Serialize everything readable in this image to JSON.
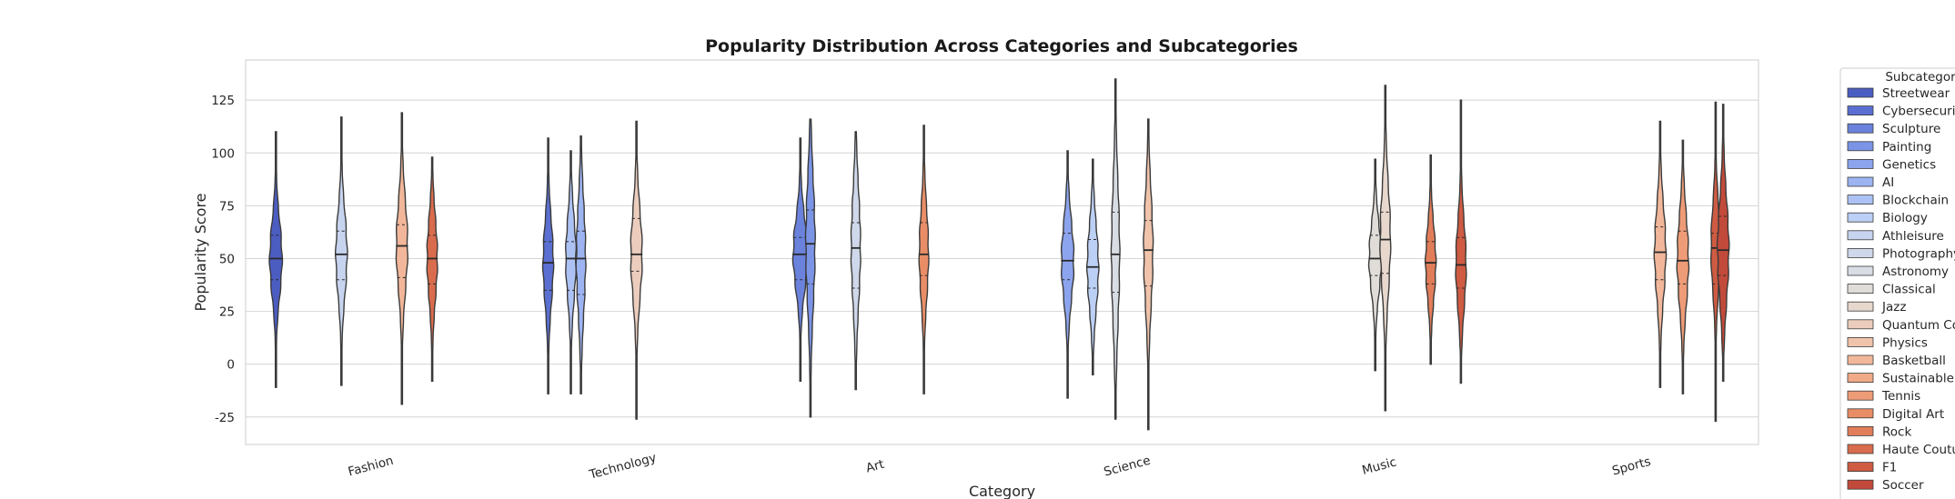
{
  "chart_data": {
    "type": "violin",
    "title": "Popularity Distribution Across Categories and Subcategories",
    "xlabel": "Category",
    "ylabel": "Popularity Score",
    "ylim": [
      -38,
      144
    ],
    "yticks": [
      -25,
      0,
      25,
      50,
      75,
      100,
      125
    ],
    "categories": [
      "Fashion",
      "Technology",
      "Art",
      "Science",
      "Music",
      "Sports"
    ],
    "grid": "y",
    "legend": {
      "title": "Subcategory",
      "placement": "outside-right",
      "items": [
        {
          "name": "Streetwear",
          "color": "#4c5dc1"
        },
        {
          "name": "Cybersecurity",
          "color": "#5a6fd1"
        },
        {
          "name": "Sculpture",
          "color": "#6a82dc"
        },
        {
          "name": "Painting",
          "color": "#7b94e6"
        },
        {
          "name": "Genetics",
          "color": "#8ca4ed"
        },
        {
          "name": "AI",
          "color": "#9db4f2"
        },
        {
          "name": "Blockchain",
          "color": "#adc2f4"
        },
        {
          "name": "Biology",
          "color": "#bccff5"
        },
        {
          "name": "Athleisure",
          "color": "#c7d4ef"
        },
        {
          "name": "Photography",
          "color": "#cfd8ea"
        },
        {
          "name": "Astronomy",
          "color": "#d8dce3"
        },
        {
          "name": "Classical",
          "color": "#e0dcd8"
        },
        {
          "name": "Jazz",
          "color": "#e7d7cd"
        },
        {
          "name": "Quantum Co",
          "color": "#eccdbd"
        },
        {
          "name": "Physics",
          "color": "#f0c3ab"
        },
        {
          "name": "Basketball",
          "color": "#f2b79a"
        },
        {
          "name": "Sustainable",
          "color": "#f1aa88"
        },
        {
          "name": "Tennis",
          "color": "#ee9c77"
        },
        {
          "name": "Digital Art",
          "color": "#e98d67"
        },
        {
          "name": "Rock",
          "color": "#e27d5a"
        },
        {
          "name": "Haute Coutu",
          "color": "#d96c4d"
        },
        {
          "name": "F1",
          "color": "#ce5b42"
        },
        {
          "name": "Soccer",
          "color": "#c24a3a"
        }
      ]
    },
    "violins": [
      {
        "category": "Fashion",
        "subcategory": "Streetwear",
        "offset": -0.38,
        "min": -11,
        "max": 110,
        "q1": 40,
        "median": 50,
        "q3": 61,
        "width": 0.6
      },
      {
        "category": "Fashion",
        "subcategory": "Athleisure",
        "offset": -0.12,
        "min": -10,
        "max": 117,
        "q1": 40,
        "median": 52,
        "q3": 63,
        "width": 0.55
      },
      {
        "category": "Fashion",
        "subcategory": "Basketball",
        "offset": 0.12,
        "min": -19,
        "max": 119,
        "q1": 41,
        "median": 56,
        "q3": 66,
        "width": 0.55
      },
      {
        "category": "Fashion",
        "subcategory": "Haute Coutu",
        "offset": 0.24,
        "min": -8,
        "max": 98,
        "q1": 38,
        "median": 50,
        "q3": 61,
        "width": 0.5
      },
      {
        "category": "Technology",
        "subcategory": "Cybersecurity",
        "offset": -0.3,
        "min": -14,
        "max": 107,
        "q1": 35,
        "median": 48,
        "q3": 58,
        "width": 0.5
      },
      {
        "category": "Technology",
        "subcategory": "Blockchain",
        "offset": -0.21,
        "min": -14,
        "max": 101,
        "q1": 35,
        "median": 50,
        "q3": 58,
        "width": 0.5
      },
      {
        "category": "Technology",
        "subcategory": "AI",
        "offset": -0.17,
        "min": -14,
        "max": 108,
        "q1": 33,
        "median": 50,
        "q3": 63,
        "width": 0.45
      },
      {
        "category": "Technology",
        "subcategory": "Quantum Co",
        "offset": 0.05,
        "min": -26,
        "max": 115,
        "q1": 44,
        "median": 52,
        "q3": 69,
        "width": 0.55
      },
      {
        "category": "Art",
        "subcategory": "Sculpture",
        "offset": -0.3,
        "min": -8,
        "max": 107,
        "q1": 40,
        "median": 52,
        "q3": 60,
        "width": 0.7
      },
      {
        "category": "Art",
        "subcategory": "Painting",
        "offset": -0.26,
        "min": -25,
        "max": 116,
        "q1": 38,
        "median": 57,
        "q3": 73,
        "width": 0.45
      },
      {
        "category": "Art",
        "subcategory": "Photography",
        "offset": -0.08,
        "min": -12,
        "max": 110,
        "q1": 36,
        "median": 55,
        "q3": 67,
        "width": 0.45
      },
      {
        "category": "Art",
        "subcategory": "Digital Art",
        "offset": 0.19,
        "min": -14,
        "max": 113,
        "q1": 42,
        "median": 52,
        "q3": 67,
        "width": 0.45
      },
      {
        "category": "Science",
        "subcategory": "Genetics",
        "offset": -0.24,
        "min": -16,
        "max": 101,
        "q1": 40,
        "median": 49,
        "q3": 62,
        "width": 0.6
      },
      {
        "category": "Science",
        "subcategory": "Biology",
        "offset": -0.14,
        "min": -5,
        "max": 97,
        "q1": 36,
        "median": 46,
        "q3": 59,
        "width": 0.55
      },
      {
        "category": "Science",
        "subcategory": "Astronomy",
        "offset": -0.05,
        "min": -26,
        "max": 135,
        "q1": 34,
        "median": 52,
        "q3": 72,
        "width": 0.4
      },
      {
        "category": "Science",
        "subcategory": "Physics",
        "offset": 0.08,
        "min": -31,
        "max": 116,
        "q1": 37,
        "median": 54,
        "q3": 68,
        "width": 0.45
      },
      {
        "category": "Music",
        "subcategory": "Classical",
        "offset": -0.02,
        "min": -3,
        "max": 97,
        "q1": 42,
        "median": 50,
        "q3": 61,
        "width": 0.6
      },
      {
        "category": "Music",
        "subcategory": "Jazz",
        "offset": 0.02,
        "min": -22,
        "max": 132,
        "q1": 43,
        "median": 59,
        "q3": 72,
        "width": 0.5
      },
      {
        "category": "Music",
        "subcategory": "Rock",
        "offset": 0.2,
        "min": 0,
        "max": 99,
        "q1": 38,
        "median": 48,
        "q3": 58,
        "width": 0.5
      },
      {
        "category": "Music",
        "subcategory": "F1",
        "offset": 0.32,
        "min": -9,
        "max": 125,
        "q1": 36,
        "median": 47,
        "q3": 60,
        "width": 0.5
      },
      {
        "category": "Sports",
        "subcategory": "Basketball",
        "offset": 0.11,
        "min": -11,
        "max": 115,
        "q1": 40,
        "median": 53,
        "q3": 65,
        "width": 0.55
      },
      {
        "category": "Sports",
        "subcategory": "Tennis",
        "offset": 0.2,
        "min": -14,
        "max": 106,
        "q1": 38,
        "median": 49,
        "q3": 63,
        "width": 0.55
      },
      {
        "category": "Sports",
        "subcategory": "F1",
        "offset": 0.33,
        "min": -27,
        "max": 124,
        "q1": 38,
        "median": 55,
        "q3": 62,
        "width": 0.45
      },
      {
        "category": "Sports",
        "subcategory": "Soccer",
        "offset": 0.36,
        "min": -8,
        "max": 123,
        "q1": 42,
        "median": 54,
        "q3": 70,
        "width": 0.55
      }
    ]
  }
}
